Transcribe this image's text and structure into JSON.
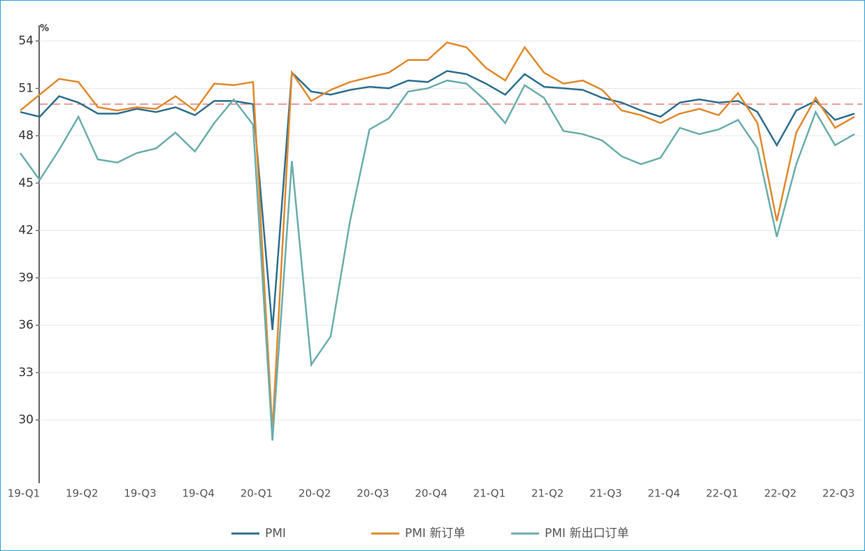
{
  "chart_data": {
    "type": "line",
    "unit": "%",
    "categories": [
      "19-Q1",
      null,
      null,
      "19-Q2",
      null,
      null,
      "19-Q3",
      null,
      null,
      "19-Q4",
      null,
      null,
      "20-Q1",
      null,
      null,
      "20-Q2",
      null,
      null,
      "20-Q3",
      null,
      null,
      "20-Q4",
      null,
      null,
      "21-Q1",
      null,
      null,
      "21-Q2",
      null,
      null,
      "21-Q3",
      null,
      null,
      "21-Q4",
      null,
      null,
      "22-Q1",
      null,
      null,
      "22-Q2",
      null,
      null,
      "22-Q3",
      null
    ],
    "series": [
      {
        "name": "PMI",
        "color": "#2d6f8f",
        "values": [
          49.5,
          49.2,
          50.5,
          50.1,
          49.4,
          49.4,
          49.7,
          49.5,
          49.8,
          49.3,
          50.2,
          50.2,
          50.0,
          35.7,
          52.0,
          50.8,
          50.6,
          50.9,
          51.1,
          51.0,
          51.5,
          51.4,
          52.1,
          51.9,
          51.3,
          50.6,
          51.9,
          51.1,
          51.0,
          50.9,
          50.4,
          50.1,
          49.6,
          49.2,
          50.1,
          50.3,
          50.1,
          50.2,
          49.5,
          47.4,
          49.6,
          50.2,
          49.0,
          49.4
        ]
      },
      {
        "name": "PMI 新订单",
        "color": "#e0892c",
        "values": [
          49.6,
          50.6,
          51.6,
          51.4,
          49.8,
          49.6,
          49.8,
          49.7,
          50.5,
          49.6,
          51.3,
          51.2,
          51.4,
          29.3,
          52.0,
          50.2,
          50.9,
          51.4,
          51.7,
          52.0,
          52.8,
          52.8,
          53.9,
          53.6,
          52.3,
          51.5,
          53.6,
          52.0,
          51.3,
          51.5,
          50.9,
          49.6,
          49.3,
          48.8,
          49.4,
          49.7,
          49.3,
          50.7,
          48.8,
          42.6,
          48.2,
          50.4,
          48.5,
          49.2
        ]
      },
      {
        "name": "PMI 新出口订单",
        "color": "#6aadad",
        "values": [
          46.9,
          45.2,
          47.1,
          49.2,
          46.5,
          46.3,
          46.9,
          47.2,
          48.2,
          47.0,
          48.8,
          50.3,
          48.7,
          28.7,
          46.4,
          33.5,
          35.3,
          42.6,
          48.4,
          49.1,
          50.8,
          51.0,
          51.5,
          51.3,
          50.2,
          48.8,
          51.2,
          50.4,
          48.3,
          48.1,
          47.7,
          46.7,
          46.2,
          46.6,
          48.5,
          48.1,
          48.4,
          49.0,
          47.2,
          41.6,
          46.2,
          49.5,
          47.4,
          48.1
        ]
      }
    ],
    "reference_line": {
      "value": 50,
      "color": "#d9534f"
    },
    "ylim": [
      26,
      55
    ],
    "yticks": [
      30,
      33,
      36,
      39,
      42,
      45,
      48,
      51,
      54
    ],
    "grid": true,
    "legend": "bottom"
  }
}
